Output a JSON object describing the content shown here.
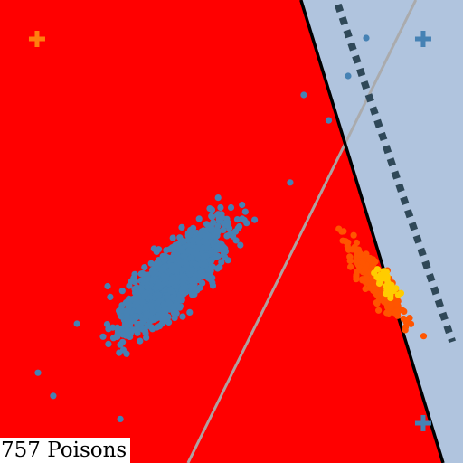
{
  "caption": {
    "text": "757 Poisons"
  },
  "chart_data": {
    "type": "scatter",
    "title": "",
    "xlabel": "",
    "ylabel": "",
    "xlim": [
      0,
      100
    ],
    "ylim": [
      0,
      100
    ],
    "grid": false,
    "legend": "none",
    "regions": [
      {
        "id": "left-region",
        "color": "#ff0000",
        "boundary": [
          [
            65.0,
            100.0
          ],
          [
            95.7,
            0.0
          ]
        ]
      },
      {
        "id": "right-region",
        "color": "#b0c4de"
      }
    ],
    "lines": [
      {
        "id": "decision-boundary",
        "color": "#000000",
        "style": "solid",
        "points": [
          [
            65.0,
            100.0
          ],
          [
            95.7,
            0.0
          ]
        ]
      },
      {
        "id": "reference-line",
        "color": "#aaaaaa",
        "style": "solid",
        "points": [
          [
            89.8,
            100.0
          ],
          [
            40.6,
            0.0
          ]
        ]
      },
      {
        "id": "margin-line",
        "color": "#2f4858",
        "style": "dotted",
        "points": [
          [
            73.0,
            99.0
          ],
          [
            97.7,
            26.2
          ]
        ]
      }
    ],
    "markers": [
      {
        "id": "centroid-orange",
        "x": 8.0,
        "y": 91.6,
        "color": "#ff7f0e"
      },
      {
        "id": "centroid-blue-top",
        "x": 91.4,
        "y": 91.6,
        "color": "#4682b4"
      },
      {
        "id": "centroid-blue-bottom",
        "x": 91.4,
        "y": 8.6,
        "color": "#4682b4"
      }
    ],
    "series": [
      {
        "id": "blue-cluster",
        "color": "#4682b4",
        "count": 1500,
        "center": [
          37.5,
          40.0
        ],
        "spread_major": 7.0,
        "spread_minor": 2.4,
        "angle_deg": 46,
        "seed": 11,
        "outliers": [
          [
            79.1,
            91.8
          ],
          [
            75.2,
            83.6
          ],
          [
            65.6,
            79.5
          ],
          [
            71.0,
            74.0
          ],
          [
            8.2,
            19.5
          ],
          [
            11.5,
            14.5
          ],
          [
            26.0,
            9.5
          ]
        ]
      },
      {
        "id": "orange-cluster",
        "color": "#ff5500",
        "count": 260,
        "center": [
          81.0,
          39.5
        ],
        "spread_major": 5.0,
        "spread_minor": 1.1,
        "angle_deg": -56,
        "seed": 23,
        "outliers": [
          [
            91.5,
            27.4
          ]
        ]
      },
      {
        "id": "yellow-cluster",
        "color": "#ffcc00",
        "count": 35,
        "center": [
          83.5,
          38.8
        ],
        "spread_major": 1.7,
        "spread_minor": 0.8,
        "angle_deg": -50,
        "seed": 37,
        "outliers": []
      }
    ]
  }
}
